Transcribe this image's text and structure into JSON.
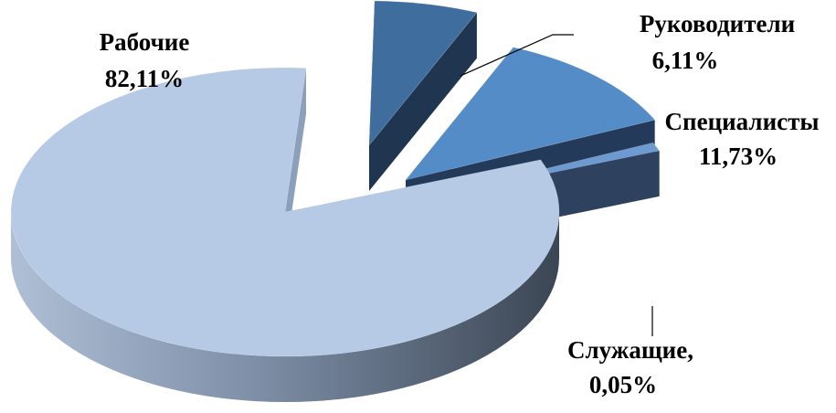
{
  "chart_data": {
    "type": "pie",
    "style": "3d-exploded",
    "title": "",
    "legend": "none",
    "slices": [
      {
        "name": "Руководители",
        "value_label": "6,11%",
        "value": 6.11,
        "color": "#3f6d9e"
      },
      {
        "name": "Специалисты",
        "value_label": "11,73%",
        "value": 11.73,
        "color": "#538cc6"
      },
      {
        "name": "Служащие,",
        "value_label": "0,05%",
        "value": 0.05,
        "color": "#6d9ad0"
      },
      {
        "name": "Рабочие",
        "value_label": "82,11%",
        "value": 82.11,
        "color": "#b6cae6"
      }
    ]
  }
}
